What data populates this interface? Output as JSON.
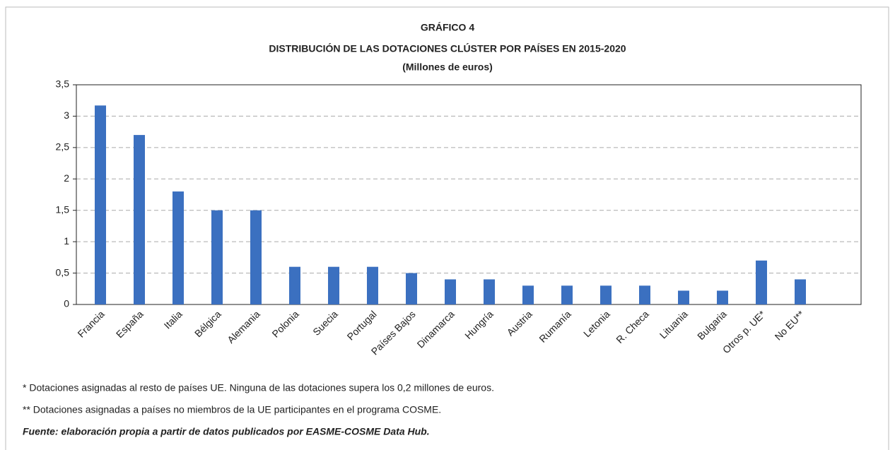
{
  "chart_data": {
    "type": "bar",
    "title": "GRÁFICO 4",
    "subtitle": "DISTRIBUCIÓN DE LAS DOTACIONES CLÚSTER POR PAÍSES EN 2015-2020",
    "unit_label": "(Millones de euros)",
    "categories": [
      "Francia",
      "España",
      "Italia",
      "Bélgica",
      "Alemania",
      "Polonia",
      "Suecia",
      "Portugal",
      "Países Bajos",
      "Dinamarca",
      "Hungría",
      "Austria",
      "Rumanía",
      "Letonia",
      "R. Checa",
      "Lituania",
      "Bulgaria",
      "Otros p. UE*",
      "No EU**"
    ],
    "values": [
      3.17,
      2.7,
      1.8,
      1.5,
      1.5,
      0.6,
      0.6,
      0.6,
      0.5,
      0.4,
      0.4,
      0.3,
      0.3,
      0.3,
      0.3,
      0.22,
      0.22,
      0.7,
      0.4
    ],
    "color": "#3b70c0",
    "ylim": [
      0,
      3.5
    ],
    "yticks": [
      0,
      {
        "value": 0.5,
        "label": "0,5"
      },
      1,
      {
        "value": 1.5,
        "label": "1,5"
      },
      2,
      {
        "value": 2.5,
        "label": "2,5"
      },
      3,
      {
        "value": 3.5,
        "label": "3,5"
      }
    ],
    "grid": true,
    "notes": [
      "* Dotaciones asignadas al resto de países UE. Ninguna de las dotaciones supera los 0,2 millones de euros.",
      "** Dotaciones asignadas a países no miembros de la UE participantes en el programa COSME."
    ],
    "source": "Fuente: elaboración propia a partir de datos publicados por EASME-COSME Data Hub."
  }
}
